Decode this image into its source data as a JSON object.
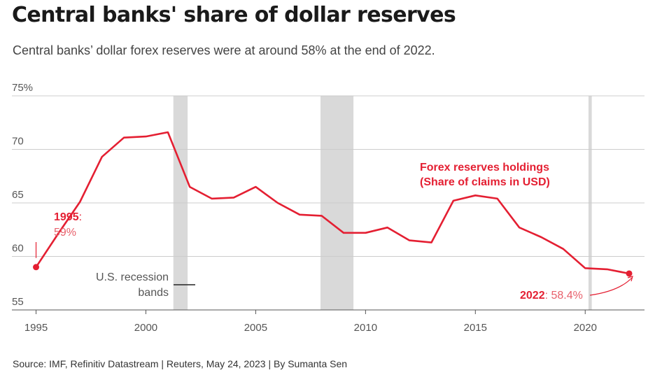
{
  "header": {
    "title": "Central banks' share of dollar reserves",
    "subtitle": "Central banks’ dollar forex reserves were at around 58% at the end of 2022."
  },
  "footer": {
    "source": "Source: IMF, Refinitiv Datastream | Reuters, May 24, 2023 | By Sumanta Sen"
  },
  "colors": {
    "series": "#e41f32",
    "recession": "#d9d9d9",
    "grid": "#cccccc",
    "axis": "#555555"
  },
  "chart_data": {
    "type": "line",
    "title": "Central banks' share of dollar reserves",
    "xlabel": "",
    "ylabel": "",
    "xlim": [
      1993.9,
      2022.7
    ],
    "ylim": [
      55,
      75
    ],
    "grid": true,
    "x_ticks": [
      1995,
      2000,
      2005,
      2010,
      2015,
      2020
    ],
    "x_tick_labels": [
      "1995",
      "2000",
      "2005",
      "2010",
      "2015",
      "2020"
    ],
    "y_ticks": [
      55,
      60,
      65,
      70,
      75
    ],
    "y_tick_labels": [
      "55",
      "60",
      "65",
      "70",
      "75%"
    ],
    "series": [
      {
        "name": "Forex reserves holdings (Share of claims in USD)",
        "x": [
          1995,
          1996,
          1997,
          1998,
          1999,
          2000,
          2001,
          2002,
          2003,
          2004,
          2005,
          2006,
          2007,
          2008,
          2009,
          2010,
          2011,
          2012,
          2013,
          2014,
          2015,
          2016,
          2017,
          2018,
          2019,
          2020,
          2021,
          2022
        ],
        "values": [
          59.0,
          62.1,
          65.1,
          69.3,
          71.1,
          71.2,
          71.6,
          66.5,
          65.4,
          65.5,
          66.5,
          65.0,
          63.9,
          63.8,
          62.2,
          62.2,
          62.7,
          61.5,
          61.3,
          65.2,
          65.7,
          65.4,
          62.7,
          61.8,
          60.7,
          58.9,
          58.8,
          58.4
        ]
      }
    ],
    "recession_bands": [
      {
        "start": 2001.25,
        "end": 2001.9
      },
      {
        "start": 2007.95,
        "end": 2009.45
      },
      {
        "start": 2020.15,
        "end": 2020.3
      }
    ],
    "series_label": {
      "line1": "Forex reserves holdings",
      "line2": "(Share of claims in USD)"
    },
    "annotations": {
      "start": {
        "year": "1995",
        "sep": ":",
        "value": "59%"
      },
      "end": {
        "year": "2022",
        "value": ": 58.4%"
      },
      "recession": {
        "line1": "U.S. recession",
        "line2": "bands"
      }
    }
  }
}
